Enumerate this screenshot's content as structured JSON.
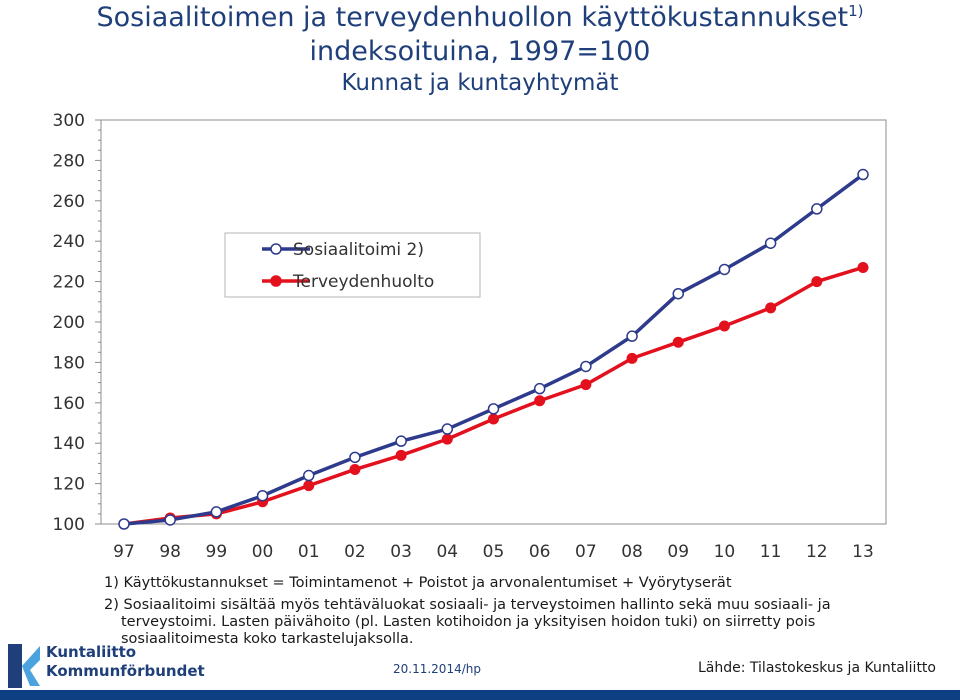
{
  "title": {
    "line1": "Sosiaalitoimen ja terveydenhuollon käyttökustannukset",
    "line1_sup": "1)",
    "line2": "indeksoituina, 1997=100",
    "line3": "Kunnat ja kuntayhtymät"
  },
  "chart_data": {
    "type": "line",
    "categories": [
      "97",
      "98",
      "99",
      "00",
      "01",
      "02",
      "03",
      "04",
      "05",
      "06",
      "07",
      "08",
      "09",
      "10",
      "11",
      "12",
      "13"
    ],
    "ylim": [
      100,
      300
    ],
    "yticks": [
      100,
      120,
      140,
      160,
      180,
      200,
      220,
      240,
      260,
      280,
      300
    ],
    "grid": false,
    "legend_placement": "upper-left-inside",
    "series": [
      {
        "name": "Sosiaalitoimi 2)",
        "color": "#2e3a8c",
        "marker": "open-circle",
        "values": [
          100,
          102,
          106,
          114,
          124,
          133,
          141,
          147,
          157,
          167,
          178,
          193,
          214,
          226,
          239,
          256,
          273
        ]
      },
      {
        "name": "Terveydenhuolto",
        "color": "#e3101d",
        "marker": "filled-circle",
        "values": [
          100,
          103,
          105,
          111,
          119,
          127,
          134,
          142,
          152,
          161,
          169,
          182,
          190,
          198,
          207,
          220,
          227
        ]
      }
    ]
  },
  "notes": {
    "n1": "1) Käyttökustannukset = Toimintamenot + Poistot ja arvonalentumiset + Vyörytyserät",
    "n2a": "2) Sosiaalitoimi sisältää myös tehtäväluokat sosiaali- ja terveystoimen hallinto sekä muu sosiaali- ja",
    "n2b": "terveystoimi. Lasten päivähoito (pl. Lasten kotihoidon ja yksityisen hoidon tuki) on siirretty pois",
    "n2c": "sosiaalitoimesta koko tarkastelujaksolla."
  },
  "footer": {
    "logo_line1": "Kuntaliitto",
    "logo_line2": "Kommunförbundet",
    "date": "20.11.2014/hp",
    "source": "Lähde: Tilastokeskus ja Kuntaliitto"
  },
  "colors": {
    "title": "#1f3f7a",
    "bar": "#0e3f82"
  }
}
